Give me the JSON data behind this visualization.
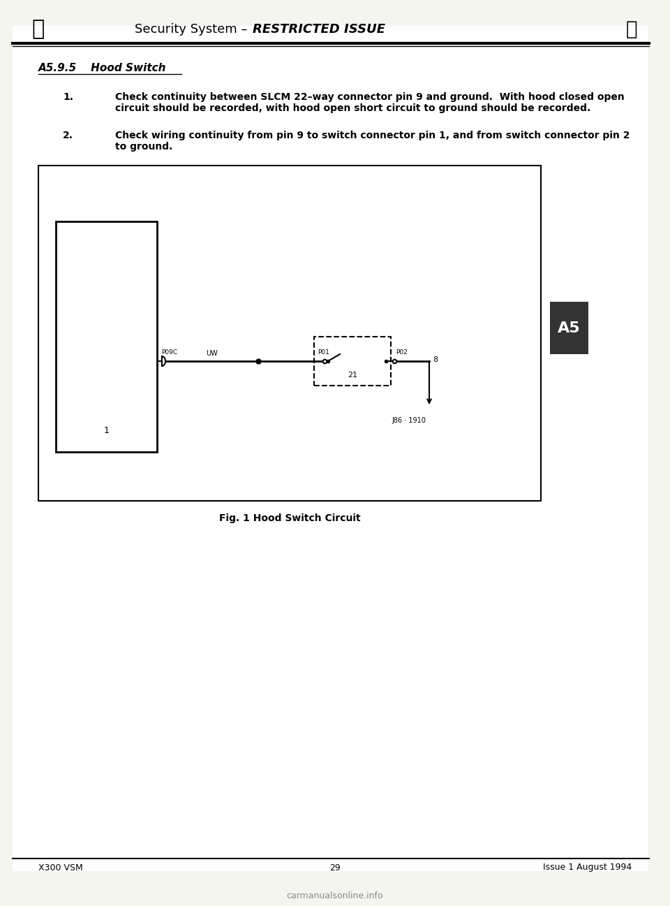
{
  "page_bg": "#f5f5f0",
  "content_bg": "#ffffff",
  "header_text": "Security System – RESTRICTED ISSUE",
  "section_title": "A5.9.5    Hood Switch",
  "item1_num": "1.",
  "item1_text": "Check continuity between SLCM 22–way connector pin 9 and ground.  With hood closed open\ncircuit should be recorded, with hood open short circuit to ground should be recorded.",
  "item2_num": "2.",
  "item2_text": "Check wiring continuity from pin 9 to switch connector pin 1, and from switch connector pin 2\nto ground.",
  "fig_caption": "Fig. 1 Hood Switch Circuit",
  "fig_ref": "J86 · 1910",
  "tab_label": "A5",
  "footer_left": "X300 VSM",
  "footer_center": "29",
  "footer_right": "Issue 1 August 1994",
  "circuit_label_left": "P09C",
  "circuit_label_uw": "UW",
  "circuit_label_p01": "P01",
  "circuit_label_p02": "P02",
  "circuit_label_8": "8",
  "circuit_label_21": "21",
  "circuit_label_1": "1"
}
